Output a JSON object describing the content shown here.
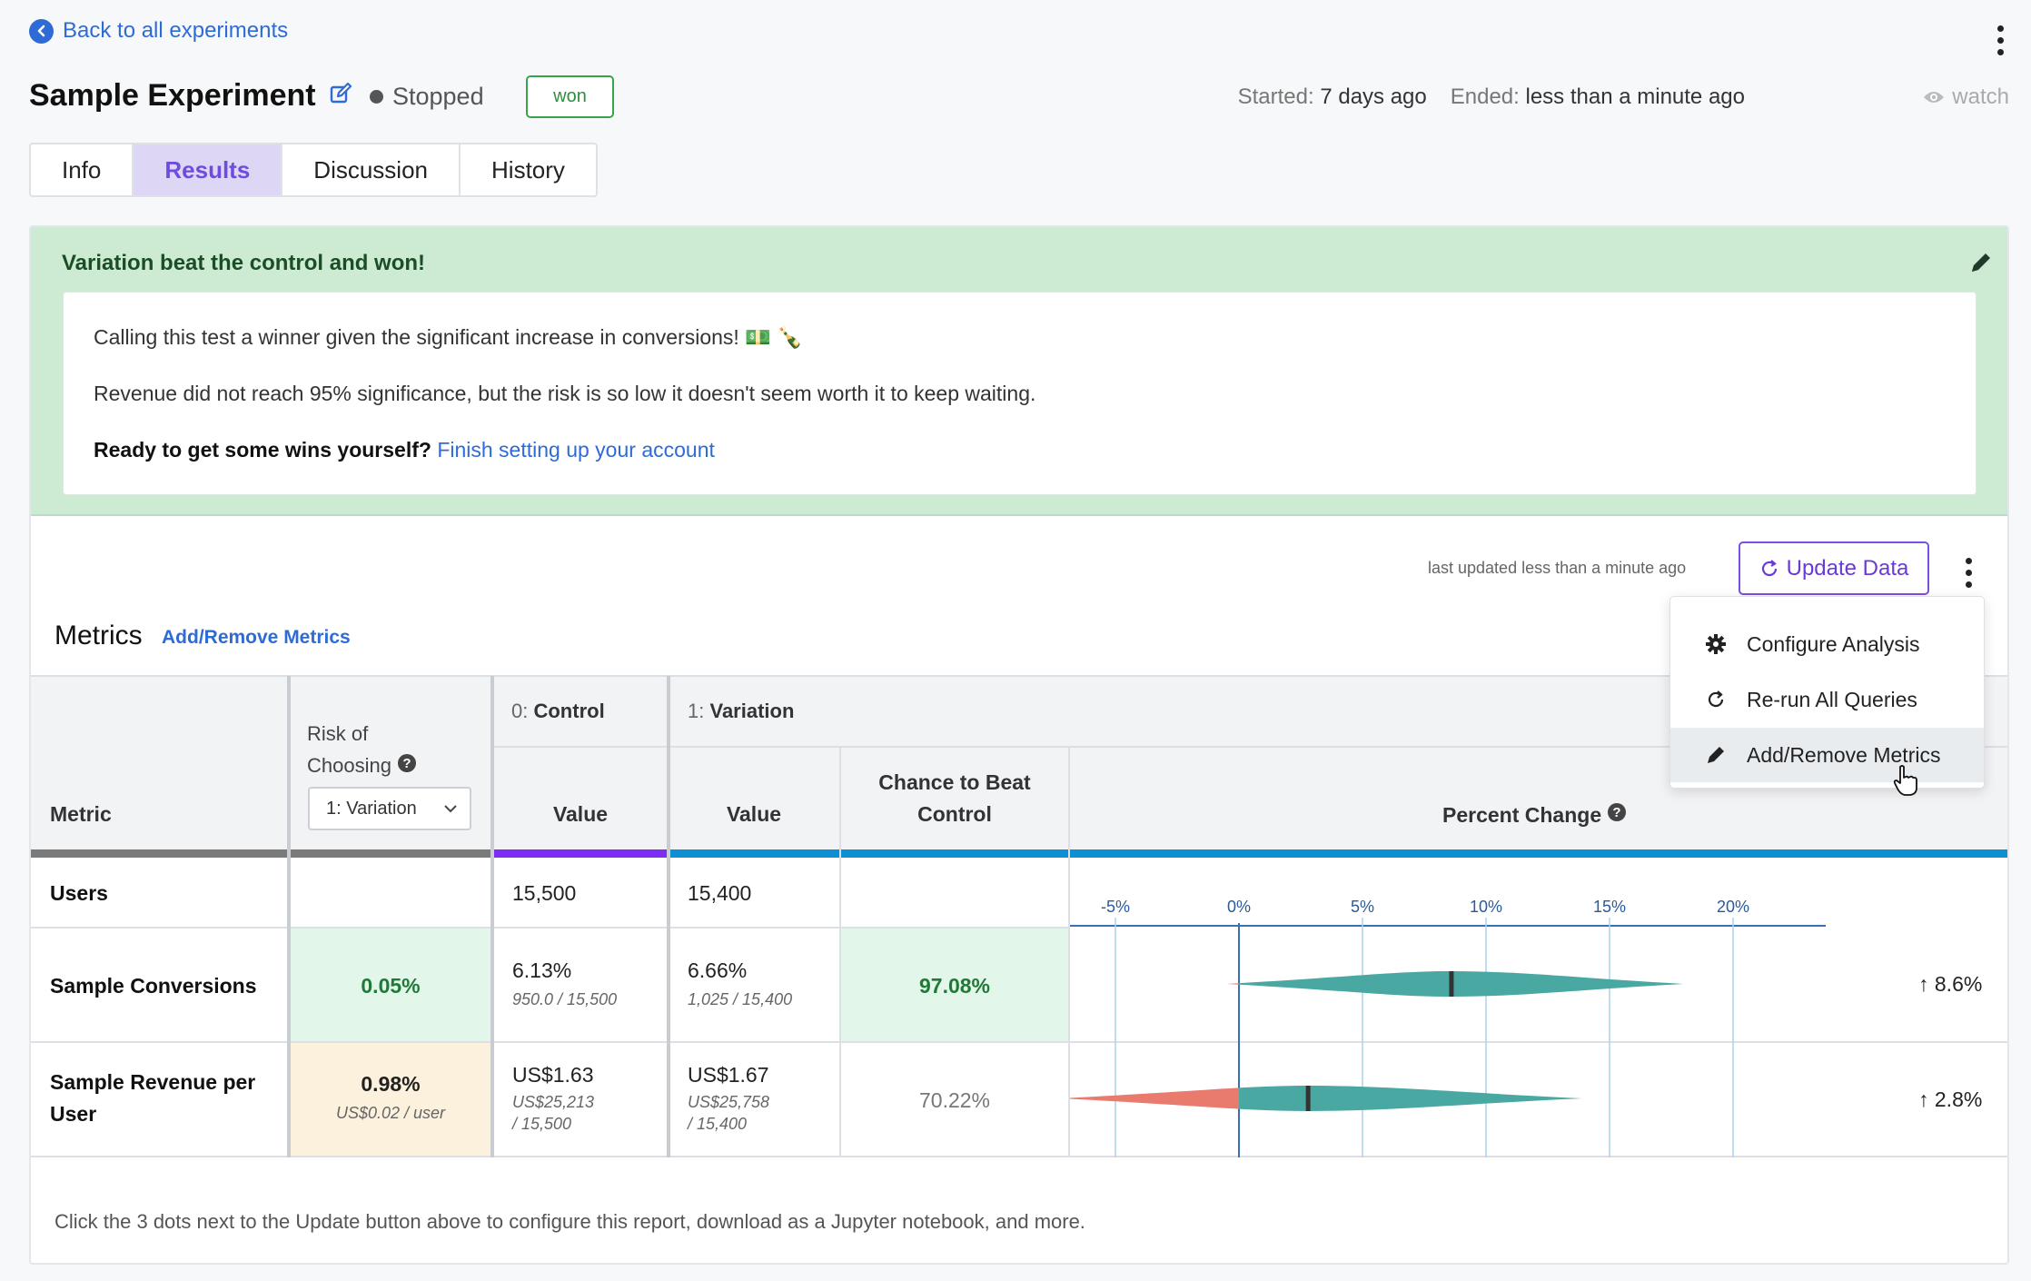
{
  "header": {
    "back_link": "Back to all experiments",
    "title": "Sample Experiment",
    "status": "Stopped",
    "result_badge": "won",
    "started_label": "Started:",
    "started_value": "7 days ago",
    "ended_label": "Ended:",
    "ended_value": "less than a minute ago",
    "watch": "watch"
  },
  "tabs": [
    {
      "label": "Info"
    },
    {
      "label": "Results"
    },
    {
      "label": "Discussion"
    },
    {
      "label": "History"
    }
  ],
  "active_tab": "Results",
  "banner": {
    "title": "Variation beat the control and won!",
    "line1": "Calling this test a winner given the significant increase in conversions! 💵 🍾",
    "line2": "Revenue did not reach 95% significance, but the risk is so low it doesn't seem worth it to keep waiting.",
    "line3_bold": "Ready to get some wins yourself?",
    "line3_link": "Finish setting up your account"
  },
  "toolbar": {
    "last_updated": "last updated less than a minute ago",
    "update_button": "Update Data"
  },
  "menu": {
    "items": [
      {
        "label": "Configure Analysis",
        "icon": "gear-icon"
      },
      {
        "label": "Re-run All Queries",
        "icon": "refresh-icon"
      },
      {
        "label": "Add/Remove Metrics",
        "icon": "pencil-icon"
      }
    ]
  },
  "metrics": {
    "heading": "Metrics",
    "add_remove_link": "Add/Remove Metrics",
    "col_metric": "Metric",
    "col_risk_line1": "Risk of",
    "col_risk_line2": "Choosing",
    "risk_select_value": "1: Variation",
    "col_control_prefix": "0:",
    "col_control": "Control",
    "col_variation_prefix": "1:",
    "col_variation": "Variation",
    "col_value": "Value",
    "col_chance_line1": "Chance to Beat",
    "col_chance_line2": "Control",
    "col_percent_change": "Percent Change",
    "axis_ticks": [
      "-5%",
      "0%",
      "5%",
      "10%",
      "15%",
      "20%"
    ],
    "rows": [
      {
        "name": "Users",
        "risk": "",
        "control_value": "15,500",
        "variation_value": "15,400",
        "chance": ""
      },
      {
        "name": "Sample Conversions",
        "risk": "0.05%",
        "control_value": "6.13%",
        "control_sub": "950.0 / 15,500",
        "variation_value": "6.66%",
        "variation_sub": "1,025 / 15,400",
        "chance": "97.08%",
        "change": "8.6%"
      },
      {
        "name_line1": "Sample Revenue per",
        "name_line2": "User",
        "risk": "0.98%",
        "risk_sub": "US$0.02 / user",
        "control_value": "US$1.63",
        "control_sub1": "US$25,213",
        "control_sub2": "/ 15,500",
        "variation_value": "US$1.67",
        "variation_sub1": "US$25,758",
        "variation_sub2": "/ 15,400",
        "chance": "70.22%",
        "change": "2.8%"
      }
    ]
  },
  "violins": [
    {
      "low": -0.5,
      "mean": 8.6,
      "high": 18.0
    },
    {
      "low": -7.2,
      "mean": 2.8,
      "high": 13.9
    }
  ],
  "footer_note": "Click the 3 dots next to the Update button above to configure this report, download as a Jupyter notebook, and more.",
  "colors": {
    "accent": "#7b4fe0",
    "control_bar": "#7e2cf3",
    "variation_bar": "#0d8fd3",
    "win_green": "#e3f6ea",
    "risk_tan": "#fbf1dc",
    "violin_teal": "#4aa8a2",
    "violin_red": "#e87a6e"
  }
}
